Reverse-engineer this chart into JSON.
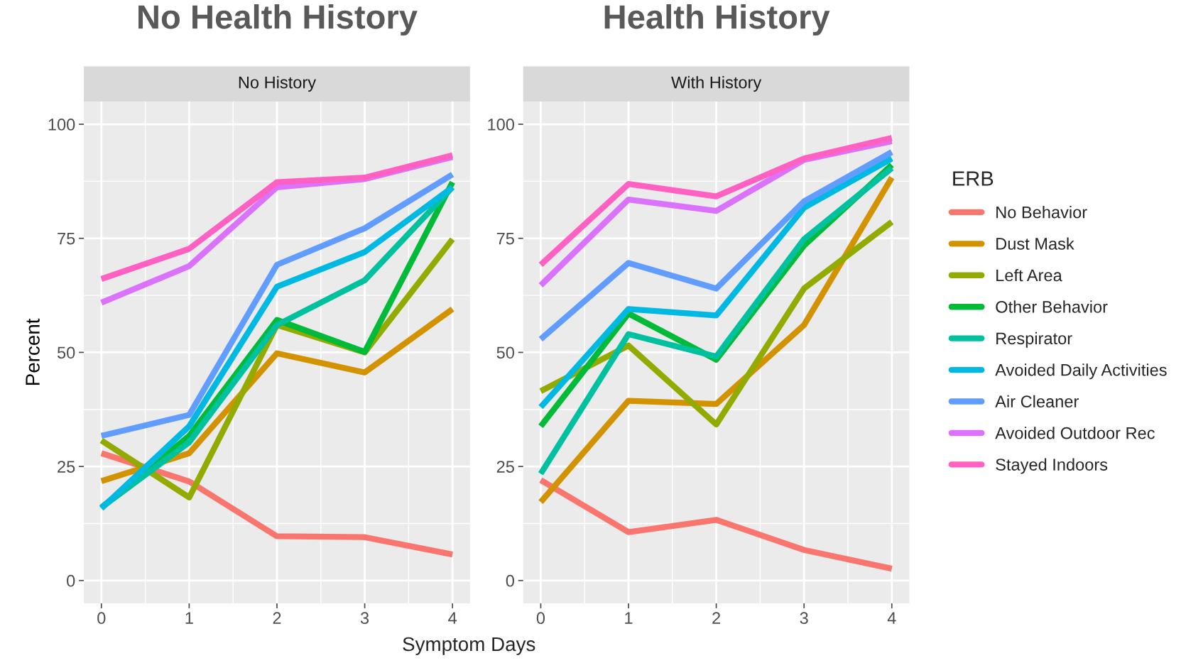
{
  "chart_data": [
    {
      "type": "line",
      "title": "No Health History",
      "subtitle": "No History",
      "xlabel": "Symptom Days",
      "ylabel": "Percent",
      "x": [
        0,
        1,
        2,
        3,
        4
      ],
      "xlim": [
        -0.2,
        4.2
      ],
      "xticks": [
        0,
        1,
        2,
        3,
        4
      ],
      "ylim": [
        -5,
        105
      ],
      "yticks": [
        0,
        25,
        50,
        75,
        100
      ],
      "grid": true,
      "series": [
        {
          "color": "#f8766d",
          "values": [
            27.9,
            21.7,
            9.7,
            9.5,
            5.7
          ]
        },
        {
          "color": "#d39200",
          "values": [
            21.8,
            27.9,
            49.8,
            45.6,
            59.5
          ]
        },
        {
          "color": "#93aa00",
          "values": [
            30.7,
            18.2,
            56,
            50,
            74.8
          ]
        },
        {
          "color": "#00ba38",
          "values": [
            16,
            31.7,
            57.1,
            50.1,
            87.3
          ]
        },
        {
          "color": "#00c19f",
          "values": [
            16,
            30.3,
            56,
            65.8,
            86.2
          ]
        },
        {
          "color": "#00b9e3",
          "values": [
            15.8,
            33.8,
            64.4,
            72,
            86.2
          ]
        },
        {
          "color": "#619cff",
          "values": [
            31.7,
            36.3,
            69.2,
            77.2,
            89
          ]
        },
        {
          "color": "#db72fb",
          "values": [
            60.9,
            68.9,
            86.2,
            88,
            92.8
          ]
        },
        {
          "color": "#ff61c3",
          "values": [
            66.1,
            72.7,
            87.3,
            88.3,
            93.2
          ]
        }
      ]
    },
    {
      "type": "line",
      "title": "Health History",
      "subtitle": "With History",
      "legend_title": "ERB",
      "legend": "right",
      "x": [
        0,
        1,
        2,
        3,
        4
      ],
      "xlim": [
        -0.2,
        4.2
      ],
      "xticks": [
        0,
        1,
        2,
        3,
        4
      ],
      "ylim": [
        -5,
        105
      ],
      "yticks": [
        0,
        25,
        50,
        75,
        100
      ],
      "grid": true,
      "series": [
        {
          "name": "No Behavior",
          "color": "#f8766d",
          "values": [
            22,
            10.6,
            13.3,
            6.7,
            2.6
          ]
        },
        {
          "name": "Dust Mask",
          "color": "#d39200",
          "values": [
            17.2,
            39.4,
            38.7,
            56,
            88.3
          ]
        },
        {
          "name": "Left Area",
          "color": "#93aa00",
          "values": [
            41.5,
            51.5,
            34.2,
            64,
            78.6
          ]
        },
        {
          "name": "Other Behavior",
          "color": "#00ba38",
          "values": [
            33.8,
            58.5,
            48.4,
            73.4,
            91.1
          ]
        },
        {
          "name": "Respirator",
          "color": "#00c19f",
          "values": [
            23.4,
            54,
            49.1,
            74.8,
            90.4
          ]
        },
        {
          "name": "Avoided Daily Activities",
          "color": "#00b9e3",
          "values": [
            38,
            59.5,
            58.1,
            81.7,
            92.5
          ]
        },
        {
          "name": "Air Cleaner",
          "color": "#619cff",
          "values": [
            52.9,
            69.6,
            64,
            83.1,
            93.9
          ]
        },
        {
          "name": "Avoided Outdoor Rec",
          "color": "#db72fb",
          "values": [
            64.7,
            83.5,
            81,
            92.2,
            96.3
          ]
        },
        {
          "name": "Stayed Indoors",
          "color": "#ff61c3",
          "values": [
            69.2,
            86.9,
            84.2,
            92.5,
            97
          ]
        }
      ]
    }
  ]
}
